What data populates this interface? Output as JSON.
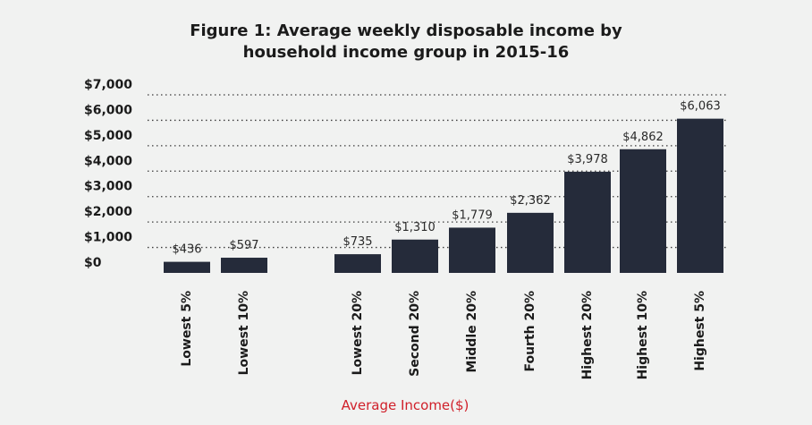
{
  "chart_data": {
    "type": "bar",
    "title_lines": [
      "Figure 1: Average weekly disposable income by",
      "household income group in 2015-16"
    ],
    "xlabel": "Average Income($)",
    "ylabel": "",
    "ylim": [
      0,
      7000
    ],
    "yticks": [
      0,
      1000,
      2000,
      3000,
      4000,
      5000,
      6000,
      7000
    ],
    "ytick_labels": [
      "$0",
      "$1,000",
      "$2,000",
      "$3,000",
      "$4,000",
      "$5,000",
      "$6,000",
      "$7,000"
    ],
    "grid": true,
    "categories": [
      "Lowest 5%",
      "Lowest 10%",
      "Lowest 20%",
      "Second 20%",
      "Middle 20%",
      "Fourth 20%",
      "Highest  20%",
      "Highest 10%",
      "Highest 5%"
    ],
    "values": [
      436,
      597,
      735,
      1310,
      1779,
      2362,
      3978,
      4862,
      6063
    ],
    "value_labels": [
      "$436",
      "$597",
      "$735",
      "$1,310",
      "$1,779",
      "$2,362",
      "$3,978",
      "$4,862",
      "$6,063"
    ],
    "bar_color": "#252b3a",
    "xlabel_color": "#d0202a"
  }
}
